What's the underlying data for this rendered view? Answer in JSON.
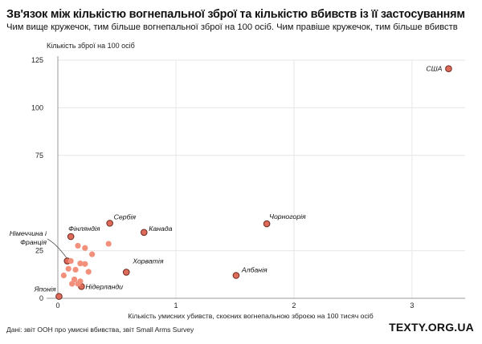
{
  "header": {
    "title": "Зв'язок між кількістю вогнепальної зброї та кількістю вбивств із її застосуванням",
    "subtitle": "Чим вище кружечок, тим більше вогнепальної зброї на 100 осіб. Чим правіше кружечок, тим більше вбивств"
  },
  "footer": {
    "source": "Дані: звіт ООН про умисні вбивства, звіт Small Arms Survey",
    "brand": "TEXTY.ORG.UA"
  },
  "colors": {
    "point_fill": "#f2907c",
    "point_fill_labeled": "#de6b59",
    "point_stroke": "#6a2a22",
    "grid": "#e6e6e6",
    "axis": "#999999"
  },
  "chart_data": {
    "type": "scatter",
    "ylabel": "Кількість зброї на 100 осіб",
    "xlabel": "Кількість умисних убивств, скоєних вогнепальною зброєю на 100 тисяч осіб",
    "xlim": [
      0,
      3.45
    ],
    "ylim": [
      0,
      125
    ],
    "xticks": [
      {
        "value": 0,
        "label": "0"
      },
      {
        "value": 1,
        "label": "1"
      },
      {
        "value": 2,
        "label": "2"
      },
      {
        "value": 3,
        "label": "3"
      }
    ],
    "yticks": [
      {
        "value": 0,
        "label": "0"
      },
      {
        "value": 25,
        "label": "25"
      },
      {
        "value": 75,
        "label": "75"
      },
      {
        "value": 100,
        "label": "100"
      },
      {
        "value": 125,
        "label": "125"
      }
    ],
    "grid": true,
    "points": [
      {
        "x": 3.31,
        "y": 120.5,
        "label": "США"
      },
      {
        "x": 1.77,
        "y": 39.1,
        "label": "Чорногорія"
      },
      {
        "x": 0.44,
        "y": 39.4,
        "label": "Сербія"
      },
      {
        "x": 0.73,
        "y": 34.6,
        "label": "Канада"
      },
      {
        "x": 0.11,
        "y": 32.4,
        "label": "Фінляндія"
      },
      {
        "x": 0.08,
        "y": 19.6,
        "label": "Німеччина і Франція"
      },
      {
        "x": 0.11,
        "y": 19.6,
        "label": ""
      },
      {
        "x": 1.51,
        "y": 12.0,
        "label": "Албанія"
      },
      {
        "x": 0.2,
        "y": 6.2,
        "label": "Нідерланди"
      },
      {
        "x": 0.01,
        "y": 1.0,
        "label": "Японія"
      },
      {
        "x": 0.58,
        "y": 13.7,
        "label": "Хорватія"
      },
      {
        "x": 0.43,
        "y": 28.6,
        "label": ""
      },
      {
        "x": 0.17,
        "y": 27.6,
        "label": ""
      },
      {
        "x": 0.23,
        "y": 26.4,
        "label": ""
      },
      {
        "x": 0.29,
        "y": 23.1,
        "label": ""
      },
      {
        "x": 0.19,
        "y": 18.3,
        "label": ""
      },
      {
        "x": 0.23,
        "y": 18.0,
        "label": ""
      },
      {
        "x": 0.09,
        "y": 15.5,
        "label": ""
      },
      {
        "x": 0.15,
        "y": 15.0,
        "label": ""
      },
      {
        "x": 0.26,
        "y": 13.9,
        "label": ""
      },
      {
        "x": 0.05,
        "y": 12.0,
        "label": ""
      },
      {
        "x": 0.14,
        "y": 9.9,
        "label": ""
      },
      {
        "x": 0.12,
        "y": 7.6,
        "label": ""
      },
      {
        "x": 0.17,
        "y": 7.6,
        "label": ""
      },
      {
        "x": 0.19,
        "y": 8.9,
        "label": ""
      }
    ]
  }
}
